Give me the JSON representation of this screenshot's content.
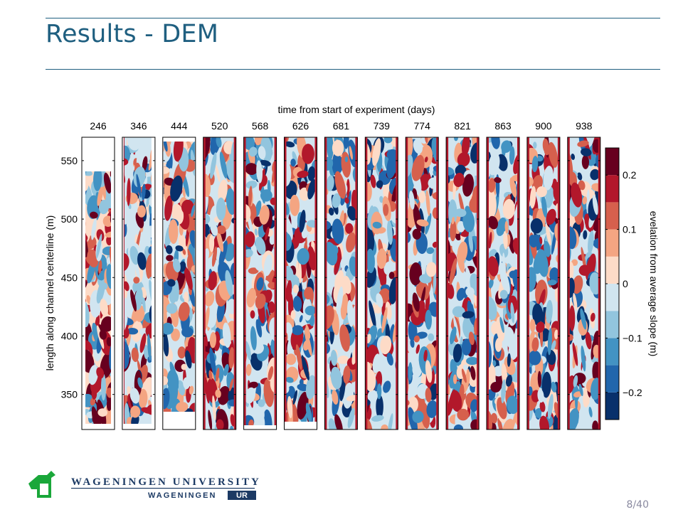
{
  "slide": {
    "title": "Results - DEM",
    "page_current": "8",
    "page_total": "40",
    "page_label": "8/40"
  },
  "logo": {
    "line1": "WAGENINGEN UNIVERSITY",
    "line2a": "WAGENINGEN",
    "line2b": "UR",
    "colors": {
      "green": "#1aa73a",
      "navy": "#1c3a64"
    }
  },
  "chart_data": {
    "type": "heatmap",
    "title": "time from start of experiment (days)",
    "panel_labels": [
      "246",
      "346",
      "444",
      "520",
      "568",
      "626",
      "681",
      "739",
      "774",
      "821",
      "863",
      "900",
      "938"
    ],
    "ylabel": "length along channel centerline (m)",
    "ylim": [
      320,
      570
    ],
    "yticks": [
      350,
      400,
      450,
      500,
      550
    ],
    "colorbar": {
      "label": "evelation from average slope (m)",
      "range": [
        -0.25,
        0.25
      ],
      "ticks": [
        -0.2,
        -0.1,
        0,
        0.1,
        0.2
      ],
      "tick_labels": [
        "−0.2",
        "−0.1",
        "0",
        "0.1",
        "0.2"
      ],
      "levels": [
        -0.25,
        -0.2,
        -0.15,
        -0.1,
        -0.05,
        0,
        0.05,
        0.1,
        0.15,
        0.2,
        0.25
      ],
      "colors": [
        "#08306b",
        "#2166ac",
        "#4393c3",
        "#92c5de",
        "#d1e5f0",
        "#fddbc7",
        "#f4a582",
        "#d6604d",
        "#b2182b",
        "#67001f"
      ]
    }
  }
}
